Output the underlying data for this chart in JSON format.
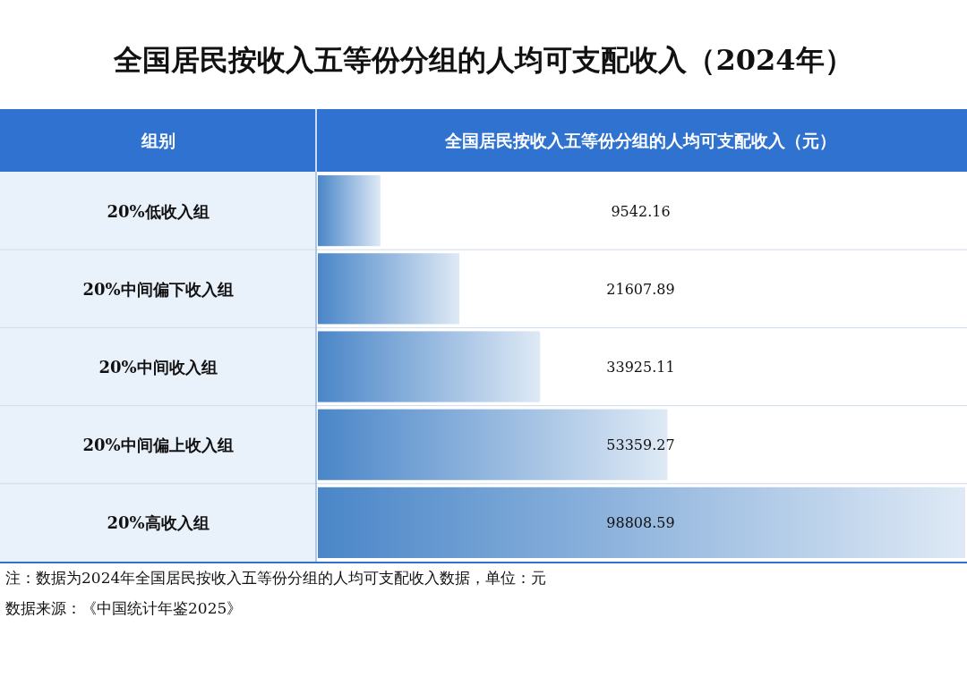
{
  "chart_data": {
    "type": "bar",
    "orientation": "horizontal",
    "title": "全国居民按收入五等份分组的人均可支配收入（2024年）",
    "ylabel": "组别",
    "xlabel": "全国居民按收入五等份分组的人均可支配收入（元）",
    "categories": [
      "20%低收入组",
      "20%中间偏下收入组",
      "20%中间收入组",
      "20%中间偏上收入组",
      "20%高收入组"
    ],
    "values": [
      9542.16,
      21607.89,
      33925.11,
      53359.27,
      98808.59
    ],
    "color": "#4a86c8",
    "data_labels": true,
    "annotations": [
      "注：数据为2024年全国居民按收入五等份分组的人均可支配收入数据，单位：元",
      "数据来源：《中国统计年鉴2025》"
    ]
  }
}
